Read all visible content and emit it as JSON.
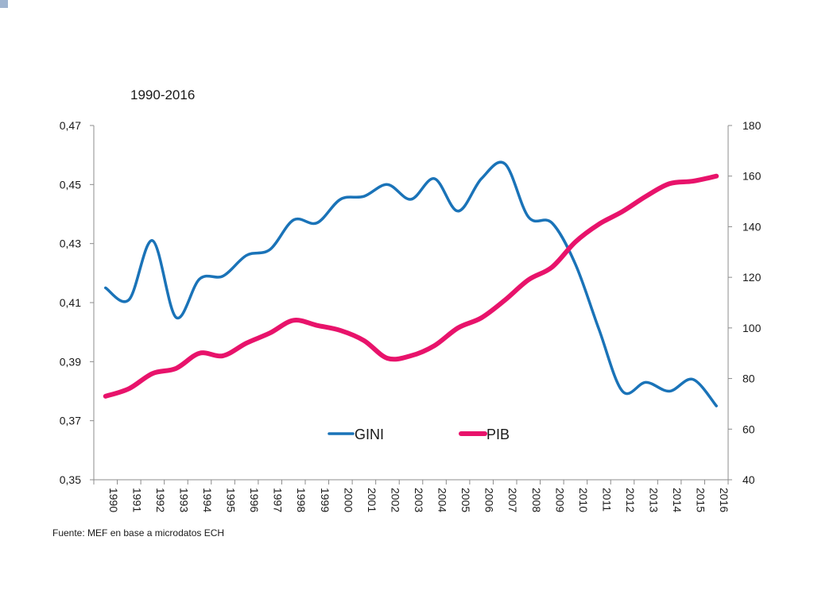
{
  "chart_data": {
    "type": "line",
    "title": "1990-2016",
    "source": "Fuente: MEF en base a microdatos ECH",
    "x": [
      "1990",
      "1991",
      "1992",
      "1993",
      "1994",
      "1995",
      "1996",
      "1997",
      "1998",
      "1999",
      "2000",
      "2001",
      "2002",
      "2003",
      "2004",
      "2005",
      "2006",
      "2007",
      "2008",
      "2009",
      "2010",
      "2011",
      "2012",
      "2013",
      "2014",
      "2015",
      "2016"
    ],
    "y_left": {
      "range": [
        0.35,
        0.47
      ],
      "ticks": [
        0.35,
        0.37,
        0.39,
        0.41,
        0.43,
        0.45,
        0.47
      ],
      "tick_labels": [
        "0,35",
        "0,37",
        "0,39",
        "0,41",
        "0,43",
        "0,45",
        "0,47"
      ]
    },
    "y_right": {
      "range": [
        40,
        180
      ],
      "ticks": [
        40,
        60,
        80,
        100,
        120,
        140,
        160,
        180
      ],
      "tick_labels": [
        "40",
        "60",
        "80",
        "100",
        "120",
        "140",
        "160",
        "180"
      ]
    },
    "series": [
      {
        "name": "GINI",
        "axis": "left",
        "color": "#1a73b8",
        "values": [
          0.415,
          0.411,
          0.431,
          0.405,
          0.418,
          0.419,
          0.426,
          0.428,
          0.438,
          0.437,
          0.445,
          0.446,
          0.45,
          0.445,
          0.452,
          0.441,
          0.452,
          0.457,
          0.439,
          0.437,
          0.423,
          0.401,
          0.38,
          0.383,
          0.38,
          0.384,
          0.375
        ]
      },
      {
        "name": "PIB",
        "axis": "right",
        "color": "#e8136b",
        "values": [
          73,
          76,
          82,
          84,
          90,
          89,
          94,
          98,
          103,
          101,
          99,
          95,
          88,
          89,
          93,
          100,
          104,
          111,
          119,
          124,
          134,
          141,
          146,
          152,
          157,
          158,
          160
        ]
      }
    ],
    "legend": "inside-bottom-center",
    "grid": false
  }
}
